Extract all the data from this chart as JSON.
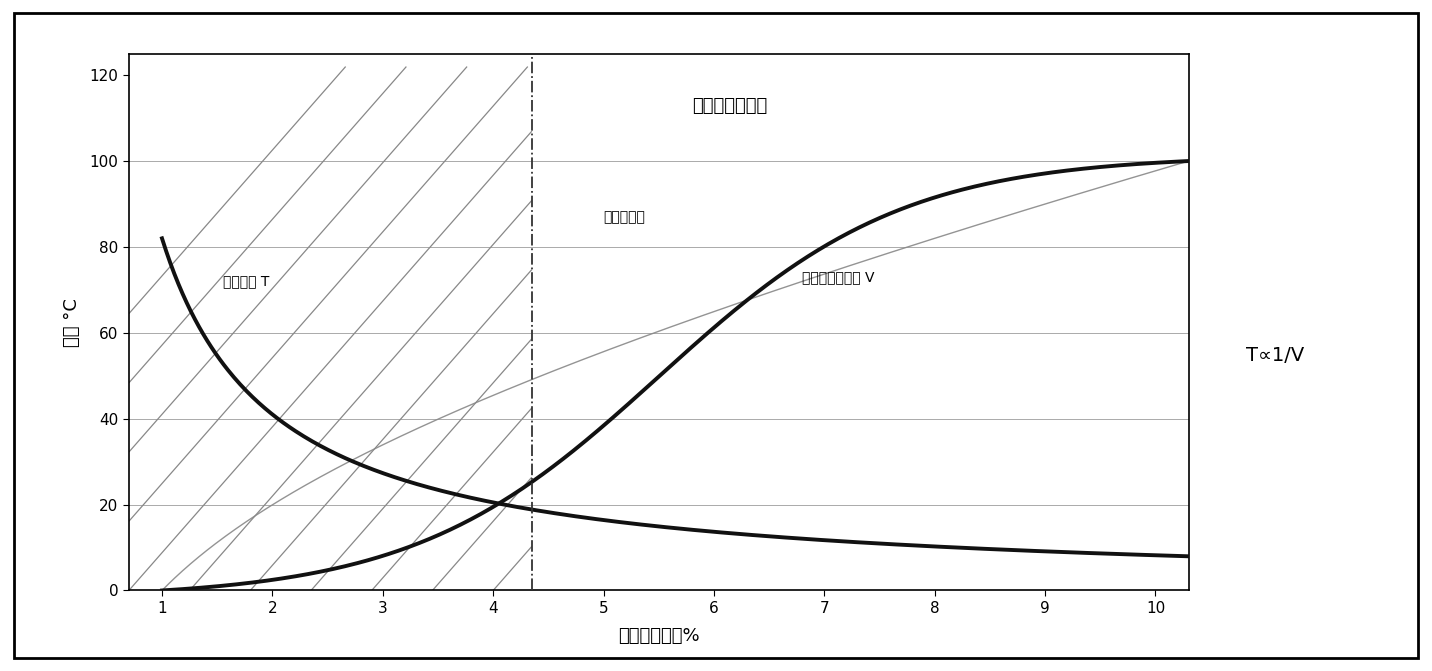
{
  "title": "蜡热式烧嘴特性",
  "xlabel": "燃烧气体流量%",
  "ylabel": "温度 °C",
  "annotation_right": "T∝1/V",
  "x_ticks": [
    1,
    2,
    3,
    4,
    5,
    6,
    7,
    8,
    9,
    10
  ],
  "y_ticks": [
    0,
    20,
    40,
    60,
    80,
    100,
    120
  ],
  "xlim": [
    0.7,
    10.3
  ],
  "ylim": [
    0,
    125
  ],
  "dashed_x": 4.35,
  "label_furnace": "加热炉炉温",
  "label_exhaust": "废气温度 T",
  "label_flow": "空气、煤气流量 V",
  "background_color": "#ffffff",
  "plot_bg_color": "#ffffff",
  "line_color_exhaust": "#111111",
  "line_color_furnace": "#888888",
  "line_color_flow": "#111111",
  "grid_color": "#aaaaaa",
  "hatch_color": "#888888"
}
